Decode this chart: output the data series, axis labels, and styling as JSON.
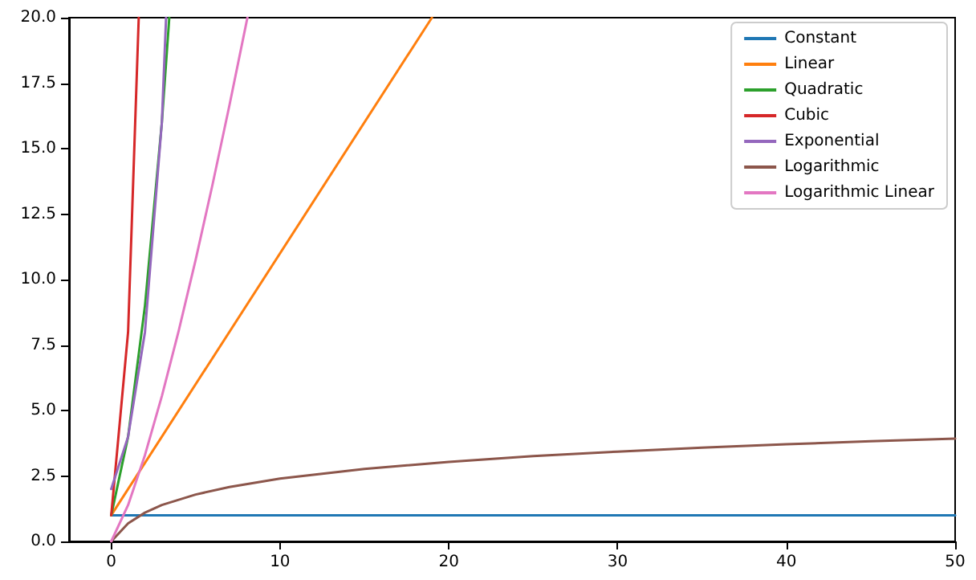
{
  "chart_data": {
    "type": "line",
    "xlim": [
      -2.5,
      50
    ],
    "xticks": [
      0,
      10,
      20,
      30,
      40,
      50
    ],
    "ylim": [
      0,
      20
    ],
    "yticks": [
      {
        "value": 0,
        "label": "0.0"
      },
      {
        "value": 2.5,
        "label": "2.5"
      },
      {
        "value": 5,
        "label": "5.0"
      },
      {
        "value": 7.5,
        "label": "7.5"
      },
      {
        "value": 10,
        "label": "10.0"
      },
      {
        "value": 12.5,
        "label": "12.5"
      },
      {
        "value": 15,
        "label": "15.0"
      },
      {
        "value": 17.5,
        "label": "17.5"
      },
      {
        "value": 20,
        "label": "20.0"
      }
    ],
    "grid": false,
    "legend": "top right",
    "marker": "none",
    "line_style": "solid",
    "series": [
      {
        "name": "Constant",
        "color": "#1f77b4",
        "x": [
          0,
          50
        ],
        "values": [
          1,
          1
        ]
      },
      {
        "name": "Linear",
        "color": "#ff7f0e",
        "x": [
          0,
          19
        ],
        "values": [
          1,
          20
        ]
      },
      {
        "name": "Quadratic",
        "color": "#2ca02c",
        "x": [
          0,
          1,
          2,
          3,
          3.44
        ],
        "values": [
          1,
          4,
          9,
          16,
          20
        ]
      },
      {
        "name": "Cubic",
        "color": "#d62728",
        "x": [
          0,
          1,
          1.63
        ],
        "values": [
          1,
          8,
          20
        ]
      },
      {
        "name": "Exponential",
        "color": "#9467bd",
        "x": [
          0,
          1,
          2,
          3,
          3.25
        ],
        "values": [
          2,
          4,
          8,
          16,
          20
        ]
      },
      {
        "name": "Logarithmic",
        "color": "#8c564b",
        "x": [
          0,
          1,
          2,
          3,
          5,
          7,
          10,
          15,
          20,
          25,
          30,
          35,
          40,
          45,
          50
        ],
        "values": [
          0,
          0.69,
          1.1,
          1.39,
          1.79,
          2.08,
          2.4,
          2.77,
          3.04,
          3.26,
          3.43,
          3.58,
          3.71,
          3.83,
          3.93
        ]
      },
      {
        "name": "Logarithmic Linear",
        "color": "#e377c2",
        "x": [
          0,
          1,
          2,
          3,
          4,
          5,
          6,
          7,
          8,
          8.07
        ],
        "values": [
          0,
          1.39,
          3.3,
          5.55,
          8.05,
          10.75,
          13.62,
          16.64,
          19.78,
          20
        ]
      }
    ]
  }
}
